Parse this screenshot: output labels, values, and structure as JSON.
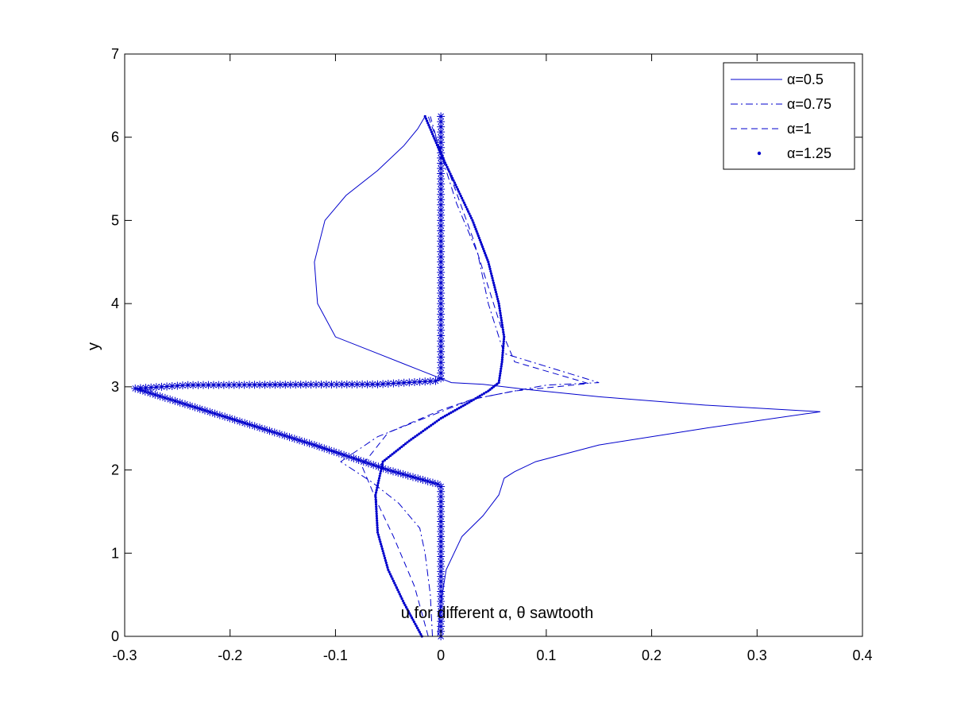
{
  "chart_data": {
    "type": "line",
    "title": "",
    "xlabel": "u for different α, θ sawtooth",
    "ylabel": "y",
    "xlim": [
      -0.3,
      0.4
    ],
    "ylim": [
      0,
      7
    ],
    "xticks": [
      -0.3,
      -0.2,
      -0.1,
      0,
      0.1,
      0.2,
      0.3,
      0.4
    ],
    "xtick_labels": [
      "-0.3",
      "-0.2",
      "-0.1",
      "0",
      "0.1",
      "0.2",
      "0.3",
      "0.4"
    ],
    "yticks": [
      0,
      1,
      2,
      3,
      4,
      5,
      6,
      7
    ],
    "ytick_labels": [
      "0",
      "1",
      "2",
      "3",
      "4",
      "5",
      "6",
      "7"
    ],
    "grid": false,
    "legend_position": "top-right",
    "color": "#0000cc",
    "series": [
      {
        "name": "α=0.5",
        "style": "solid",
        "x": [
          -0.003,
          0.0,
          0.005,
          0.02,
          0.04,
          0.055,
          0.06,
          0.07,
          0.09,
          0.15,
          0.25,
          0.36,
          0.25,
          0.15,
          0.08,
          0.04,
          0.01,
          -0.02,
          -0.06,
          -0.1,
          -0.117,
          -0.12,
          -0.11,
          -0.09,
          -0.06,
          -0.035,
          -0.022,
          -0.015
        ],
        "y": [
          0.0,
          0.4,
          0.8,
          1.2,
          1.45,
          1.7,
          1.9,
          1.98,
          2.1,
          2.3,
          2.5,
          2.7,
          2.78,
          2.88,
          2.97,
          3.03,
          3.05,
          3.2,
          3.4,
          3.6,
          4.0,
          4.5,
          5.0,
          5.3,
          5.6,
          5.9,
          6.1,
          6.25
        ]
      },
      {
        "name": "α=0.75",
        "style": "dashdot",
        "x": [
          -0.008,
          -0.01,
          -0.015,
          -0.02,
          -0.04,
          -0.065,
          -0.095,
          -0.06,
          0.0,
          0.03,
          0.07,
          0.1,
          0.15,
          0.06,
          0.045,
          0.035,
          0.015,
          0.0,
          -0.01
        ],
        "y": [
          0.0,
          0.5,
          1.0,
          1.3,
          1.6,
          1.85,
          2.1,
          2.4,
          2.7,
          2.85,
          2.95,
          3.02,
          3.05,
          3.4,
          4.0,
          4.6,
          5.2,
          5.8,
          6.25
        ]
      },
      {
        "name": "α=1",
        "style": "dashed",
        "x": [
          -0.012,
          -0.025,
          -0.045,
          -0.06,
          -0.075,
          -0.05,
          0.0,
          0.03,
          0.07,
          0.11,
          0.14,
          0.07,
          0.06,
          0.045,
          0.03,
          0.01,
          -0.012
        ],
        "y": [
          0.0,
          0.6,
          1.2,
          1.6,
          2.05,
          2.45,
          2.72,
          2.85,
          2.95,
          3.0,
          3.04,
          3.3,
          3.6,
          4.2,
          4.8,
          5.5,
          6.25
        ]
      },
      {
        "name": "α=1.25",
        "style": "dot",
        "x": [
          -0.018,
          -0.035,
          -0.05,
          -0.06,
          -0.062,
          -0.055,
          -0.03,
          0.0,
          0.025,
          0.045,
          0.055,
          0.058,
          0.06,
          0.055,
          0.045,
          0.03,
          0.015,
          0.0,
          -0.015
        ],
        "y": [
          0.0,
          0.4,
          0.8,
          1.25,
          1.7,
          2.1,
          2.35,
          2.62,
          2.8,
          2.95,
          3.05,
          3.3,
          3.6,
          4.0,
          4.5,
          5.0,
          5.4,
          5.8,
          6.25
        ]
      },
      {
        "name": "",
        "style": "star",
        "x": [
          0,
          0,
          0,
          0,
          -0.005,
          -0.06,
          -0.24,
          -0.29,
          -0.12,
          -0.05,
          -0.003,
          0,
          0,
          0,
          0
        ],
        "y": [
          6.25,
          5.0,
          4.0,
          3.1,
          3.07,
          3.03,
          3.02,
          2.98,
          2.3,
          2.0,
          1.83,
          1.8,
          1.2,
          0.6,
          0.0
        ]
      }
    ]
  }
}
